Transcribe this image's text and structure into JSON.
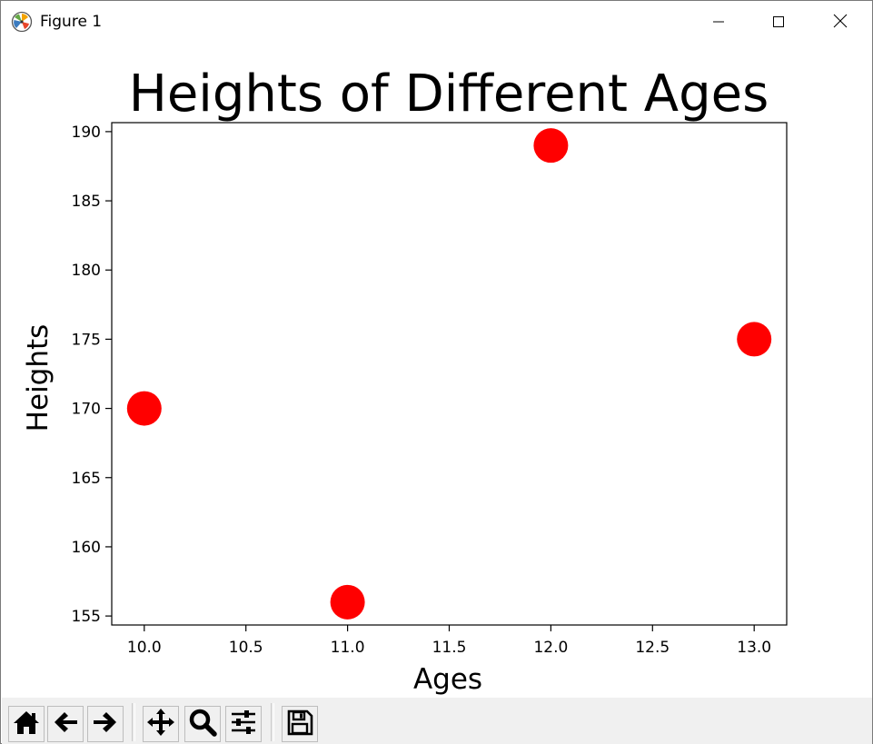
{
  "window": {
    "title": "Figure 1",
    "app_icon": "matplotlib-icon",
    "controls": [
      "minimize-icon",
      "maximize-icon",
      "close-icon"
    ]
  },
  "toolbar": {
    "buttons": [
      {
        "icon": "home-icon",
        "name": "home-button"
      },
      {
        "icon": "back-arrow-icon",
        "name": "back-button"
      },
      {
        "icon": "forward-arrow-icon",
        "name": "forward-button"
      },
      {
        "icon": "pan-icon",
        "name": "pan-button"
      },
      {
        "icon": "zoom-icon",
        "name": "zoom-button"
      },
      {
        "icon": "configure-subplots-icon",
        "name": "subplots-button"
      },
      {
        "icon": "save-icon",
        "name": "save-button"
      }
    ]
  },
  "chart_data": {
    "type": "scatter",
    "title": "Heights of Different Ages",
    "xlabel": "Ages",
    "ylabel": "Heights",
    "x": [
      10,
      11,
      12,
      13
    ],
    "y": [
      170,
      156,
      189,
      175
    ],
    "xlim": [
      9.84,
      13.16
    ],
    "ylim": [
      154.35,
      190.65
    ],
    "xticks": [
      10.0,
      10.5,
      11.0,
      11.5,
      12.0,
      12.5,
      13.0
    ],
    "xtick_labels": [
      "10.0",
      "10.5",
      "11.0",
      "11.5",
      "12.0",
      "12.5",
      "13.0"
    ],
    "yticks": [
      155,
      160,
      165,
      170,
      175,
      180,
      185,
      190
    ],
    "ytick_labels": [
      "155",
      "160",
      "165",
      "170",
      "175",
      "180",
      "185",
      "190"
    ],
    "marker_color": "#ff0000",
    "grid": false
  }
}
